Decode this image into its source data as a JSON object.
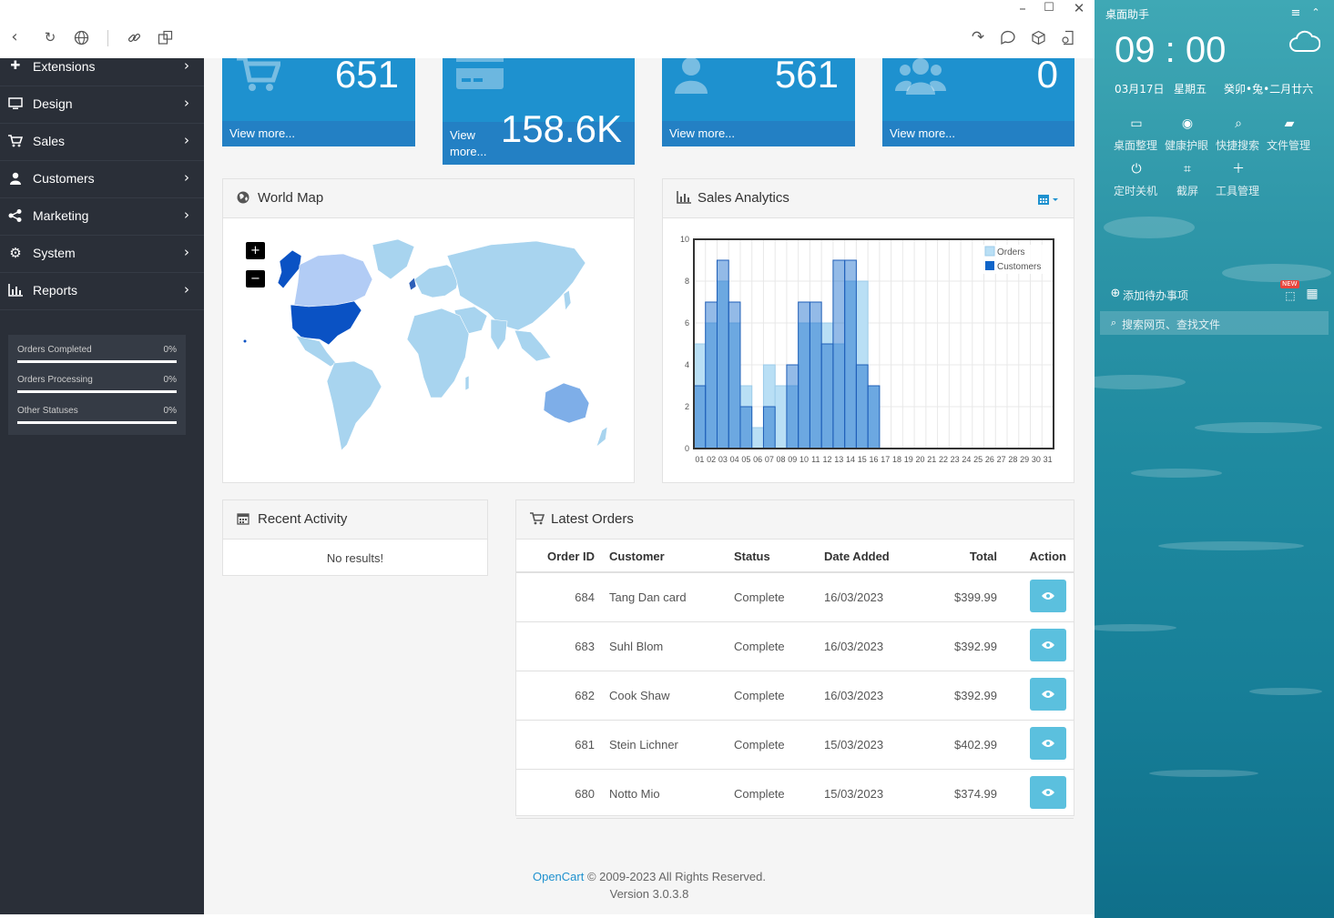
{
  "sidebar": {
    "items": [
      {
        "label": "Extensions",
        "icon": "puzzle-icon"
      },
      {
        "label": "Design",
        "icon": "monitor-icon"
      },
      {
        "label": "Sales",
        "icon": "cart-icon"
      },
      {
        "label": "Customers",
        "icon": "user-icon"
      },
      {
        "label": "Marketing",
        "icon": "share-icon"
      },
      {
        "label": "System",
        "icon": "gear-icon"
      },
      {
        "label": "Reports",
        "icon": "bar-chart-icon"
      }
    ],
    "statuses": [
      {
        "label": "Orders Completed",
        "percent": "0%",
        "fill": 1
      },
      {
        "label": "Orders Processing",
        "percent": "0%",
        "fill": 1
      },
      {
        "label": "Other Statuses",
        "percent": "0%",
        "fill": 1
      }
    ]
  },
  "tiles": [
    {
      "value": "651",
      "link": "View more...",
      "icon": "cart-icon"
    },
    {
      "value": "158.6K",
      "link": "View more...",
      "icon": "credit-card-icon"
    },
    {
      "value": "561",
      "link": "View more...",
      "icon": "user-icon"
    },
    {
      "value": "0",
      "link": "View more...",
      "icon": "users-icon"
    }
  ],
  "world_map": {
    "title": "World Map",
    "zoom_in": "+",
    "zoom_out": "−"
  },
  "sales_analytics": {
    "title": "Sales Analytics"
  },
  "chart_data": {
    "type": "bar",
    "categories": [
      "01",
      "02",
      "03",
      "04",
      "05",
      "06",
      "07",
      "08",
      "09",
      "10",
      "11",
      "12",
      "13",
      "14",
      "15",
      "16",
      "17",
      "18",
      "19",
      "20",
      "21",
      "22",
      "23",
      "24",
      "25",
      "26",
      "27",
      "28",
      "29",
      "30",
      "31"
    ],
    "series": [
      {
        "name": "Orders",
        "values": [
          5,
          6,
          8,
          6,
          3,
          1,
          4,
          3,
          3,
          6,
          6,
          6,
          5,
          8,
          8,
          3,
          0,
          0,
          0,
          0,
          0,
          0,
          0,
          0,
          0,
          0,
          0,
          0,
          0,
          0,
          0
        ]
      },
      {
        "name": "Customers",
        "values": [
          3,
          7,
          9,
          7,
          2,
          0,
          2,
          0,
          4,
          7,
          7,
          5,
          9,
          9,
          4,
          3,
          0,
          0,
          0,
          0,
          0,
          0,
          0,
          0,
          0,
          0,
          0,
          0,
          0,
          0,
          0
        ]
      }
    ],
    "ylim": [
      0,
      10
    ],
    "yticks": [
      "0",
      "2",
      "4",
      "6",
      "8",
      "10"
    ],
    "legend": "top-right",
    "colors": {
      "Orders": "#b9dff5",
      "Customers": "#1065c9"
    },
    "grid": true
  },
  "recent_activity": {
    "title": "Recent Activity",
    "empty": "No results!"
  },
  "latest_orders": {
    "title": "Latest Orders",
    "headers": [
      "Order ID",
      "Customer",
      "Status",
      "Date Added",
      "Total",
      "Action"
    ],
    "rows": [
      {
        "id": "684",
        "customer": "Tang Dan card",
        "status": "Complete",
        "date": "16/03/2023",
        "total": "$399.99"
      },
      {
        "id": "683",
        "customer": "Suhl Blom",
        "status": "Complete",
        "date": "16/03/2023",
        "total": "$392.99"
      },
      {
        "id": "682",
        "customer": "Cook Shaw",
        "status": "Complete",
        "date": "16/03/2023",
        "total": "$392.99"
      },
      {
        "id": "681",
        "customer": "Stein Lichner",
        "status": "Complete",
        "date": "15/03/2023",
        "total": "$402.99"
      },
      {
        "id": "680",
        "customer": "Notto Mio",
        "status": "Complete",
        "date": "15/03/2023",
        "total": "$374.99"
      }
    ]
  },
  "footer": {
    "brand": "OpenCart",
    "copyright": " © 2009-2023 All Rights Reserved.",
    "version": "Version 3.0.3.8"
  },
  "widget": {
    "title": "桌面助手",
    "time": "09 : 00",
    "date": "03月17日",
    "weekday": "星期五",
    "lunar": "癸卯•兔•二月廿六",
    "tools": [
      "桌面整理",
      "健康护眼",
      "快捷搜索",
      "文件管理",
      "定时关机",
      "截屏",
      "工具管理"
    ],
    "todo": "添加待办事项",
    "new_badge": "NEW",
    "search": "搜索网页、查找文件"
  },
  "colors": {
    "tile": "#1e91cf",
    "tile_footer": "#2380c4",
    "sidebar": "#2a2f38",
    "action": "#5bc0de",
    "brand_link": "#1e91cf"
  }
}
